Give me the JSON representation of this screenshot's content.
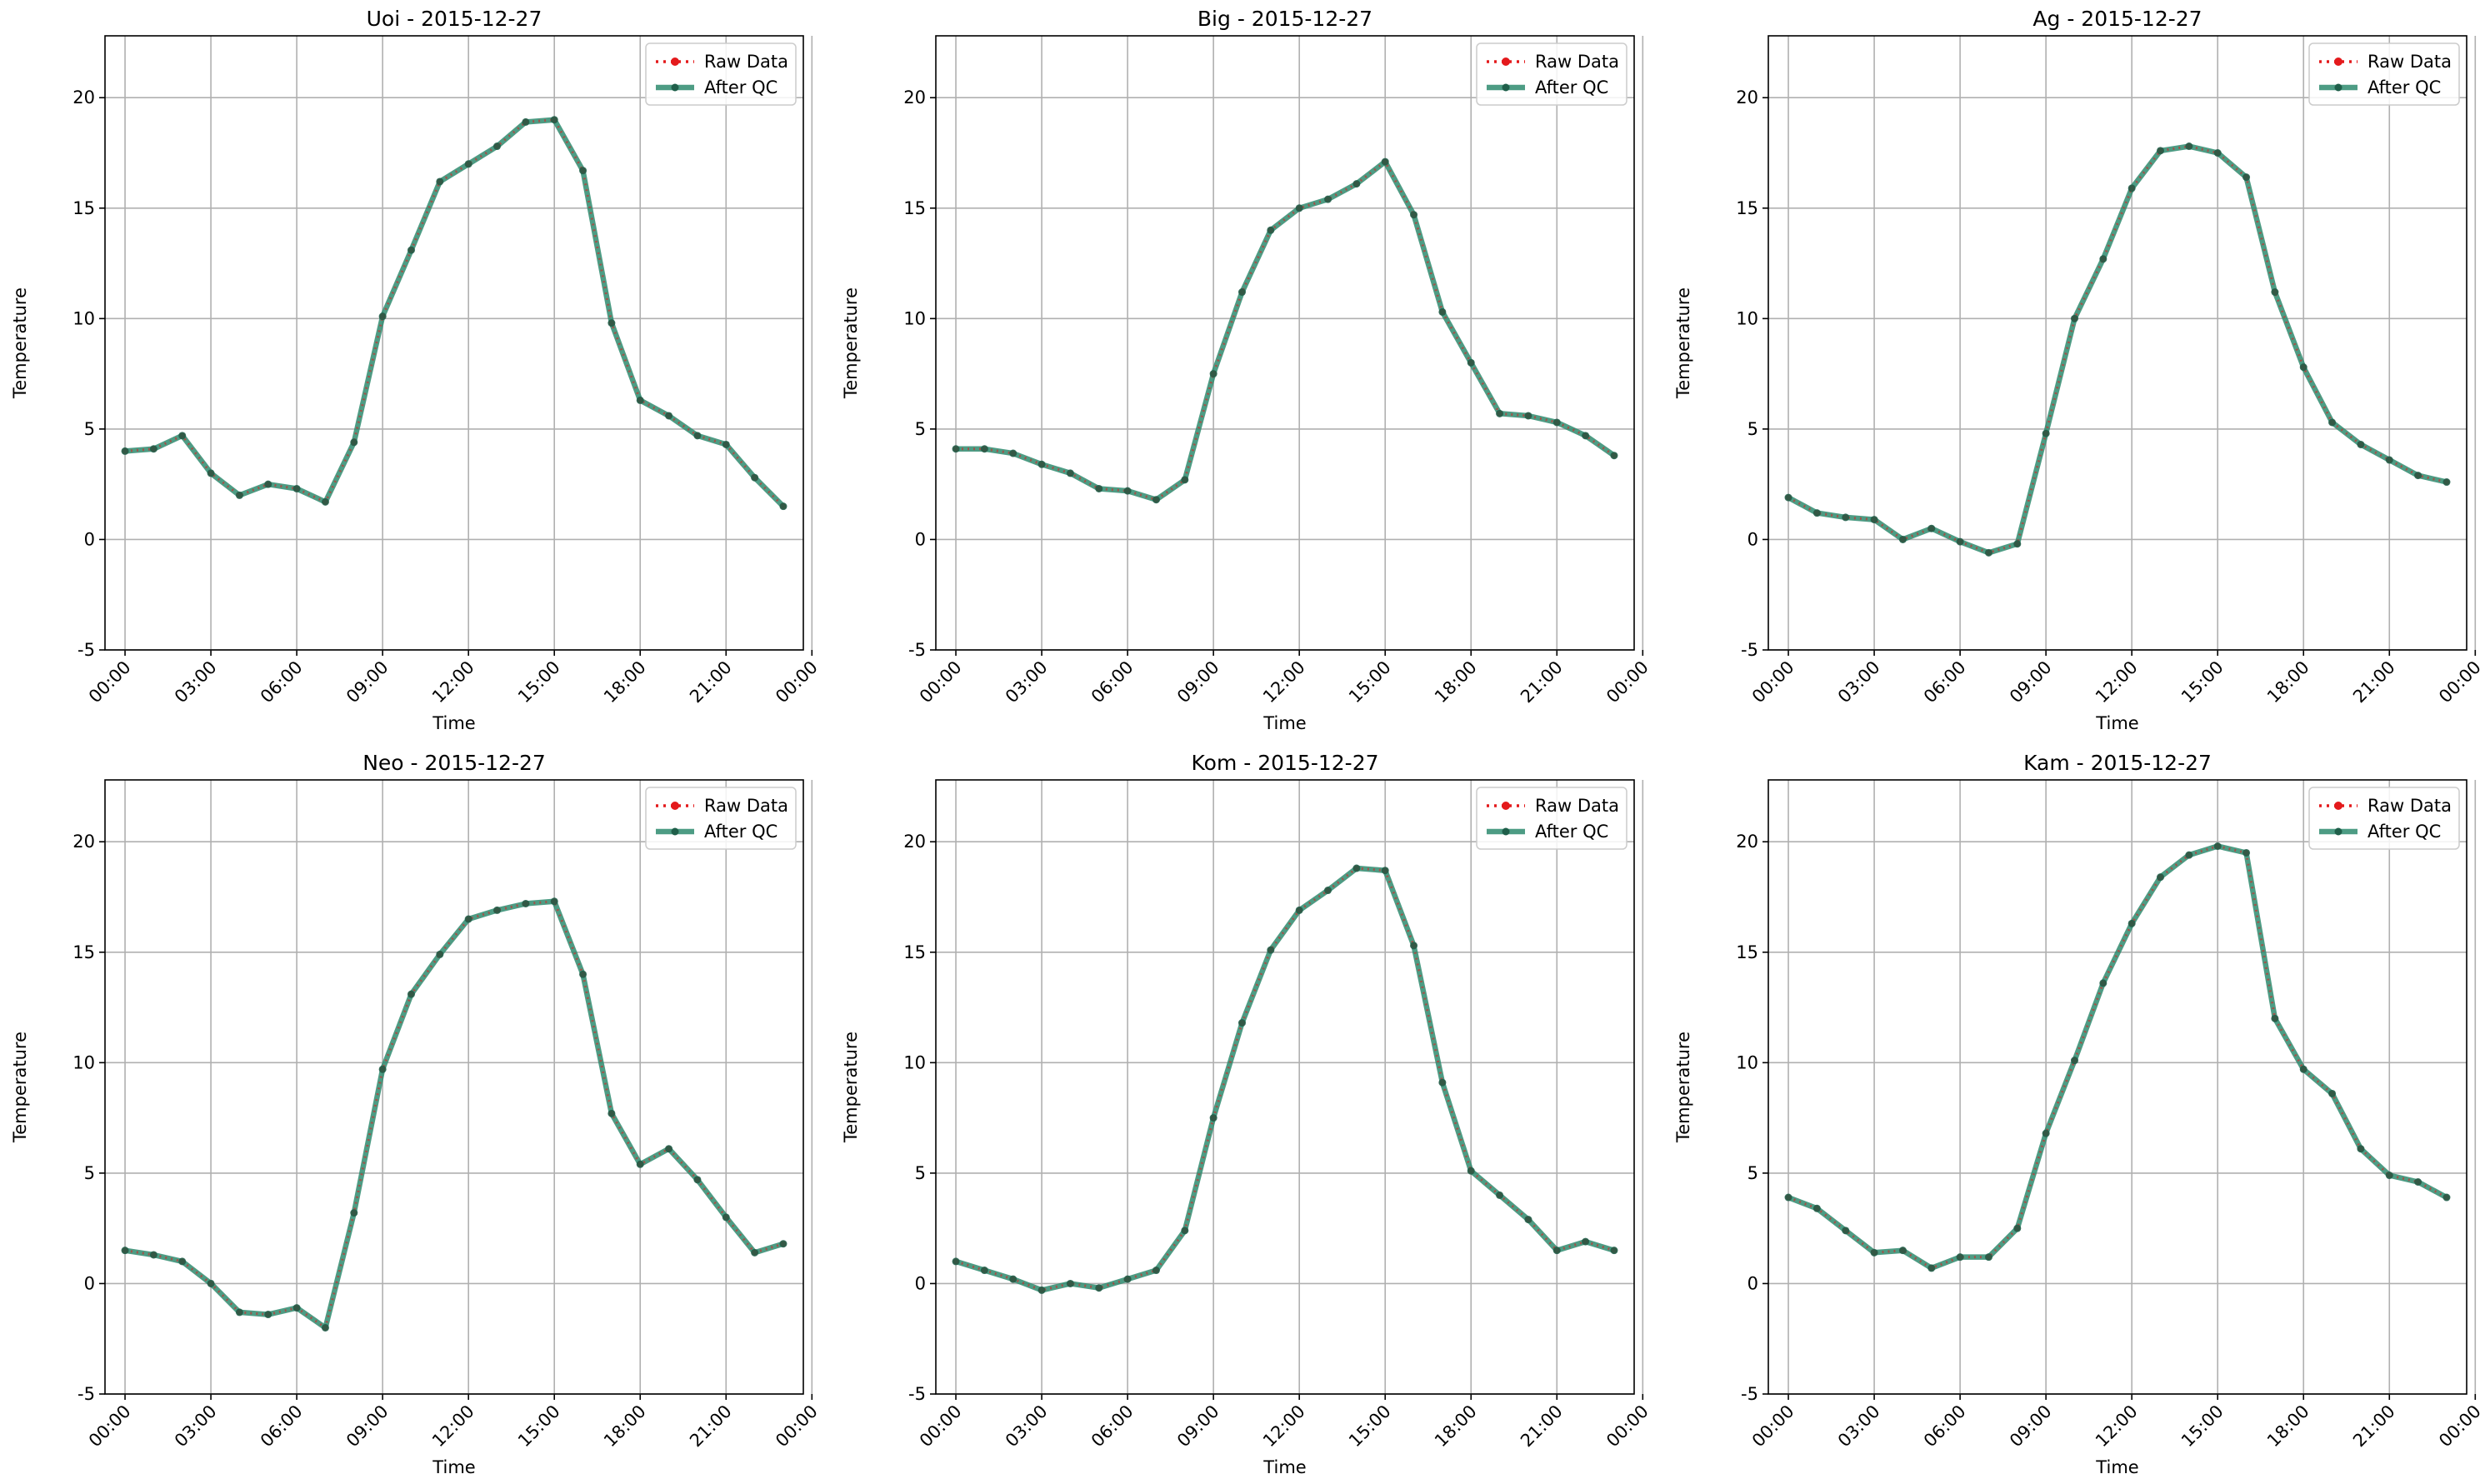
{
  "colors": {
    "raw": "#e41a1c",
    "qc": "#2e8b6e",
    "grid": "#b0b0b0"
  },
  "chart_data": [
    {
      "type": "line",
      "title": "Uoi - 2015-12-27",
      "xlabel": "Time",
      "ylabel": "Temperature",
      "ylim": [
        -5,
        22.8
      ],
      "yticks": [
        -5,
        0,
        5,
        10,
        15,
        20
      ],
      "xlim": [
        -0.7,
        23.7
      ],
      "xticks": [
        "00:00",
        "03:00",
        "06:00",
        "09:00",
        "12:00",
        "15:00",
        "18:00",
        "21:00",
        "00:00"
      ],
      "x": [
        0,
        1,
        2,
        3,
        4,
        5,
        6,
        7,
        8,
        9,
        10,
        11,
        12,
        13,
        14,
        15,
        16,
        17,
        18,
        19,
        20,
        21,
        22,
        23
      ],
      "series": [
        {
          "name": "Raw Data",
          "values": [
            4.0,
            4.1,
            4.7,
            3.0,
            2.0,
            2.5,
            2.3,
            1.7,
            4.4,
            10.1,
            13.1,
            16.2,
            17.0,
            17.8,
            18.9,
            19.0,
            16.7,
            9.8,
            6.3,
            5.6,
            4.7,
            4.3,
            2.8,
            1.5
          ]
        },
        {
          "name": "After QC",
          "values": [
            4.0,
            4.1,
            4.7,
            3.0,
            2.0,
            2.5,
            2.3,
            1.7,
            4.4,
            10.1,
            13.1,
            16.2,
            17.0,
            17.8,
            18.9,
            19.0,
            16.7,
            9.8,
            6.3,
            5.6,
            4.7,
            4.3,
            2.8,
            1.5
          ]
        }
      ],
      "legend": "top-right",
      "grid": true
    },
    {
      "type": "line",
      "title": "Big - 2015-12-27",
      "xlabel": "Time",
      "ylabel": "Temperature",
      "ylim": [
        -5,
        22.8
      ],
      "yticks": [
        -5,
        0,
        5,
        10,
        15,
        20
      ],
      "xlim": [
        -0.7,
        23.7
      ],
      "xticks": [
        "00:00",
        "03:00",
        "06:00",
        "09:00",
        "12:00",
        "15:00",
        "18:00",
        "21:00",
        "00:00"
      ],
      "x": [
        0,
        1,
        2,
        3,
        4,
        5,
        6,
        7,
        8,
        9,
        10,
        11,
        12,
        13,
        14,
        15,
        16,
        17,
        18,
        19,
        20,
        21,
        22,
        23
      ],
      "series": [
        {
          "name": "Raw Data",
          "values": [
            4.1,
            4.1,
            3.9,
            3.4,
            3.0,
            2.3,
            2.2,
            1.8,
            2.7,
            7.5,
            11.2,
            14.0,
            15.0,
            15.4,
            16.1,
            17.1,
            14.7,
            10.3,
            8.0,
            5.7,
            5.6,
            5.3,
            4.7,
            3.8
          ]
        },
        {
          "name": "After QC",
          "values": [
            4.1,
            4.1,
            3.9,
            3.4,
            3.0,
            2.3,
            2.2,
            1.8,
            2.7,
            7.5,
            11.2,
            14.0,
            15.0,
            15.4,
            16.1,
            17.1,
            14.7,
            10.3,
            8.0,
            5.7,
            5.6,
            5.3,
            4.7,
            3.8
          ]
        }
      ],
      "legend": "top-right",
      "grid": true
    },
    {
      "type": "line",
      "title": "Ag - 2015-12-27",
      "xlabel": "Time",
      "ylabel": "Temperature",
      "ylim": [
        -5,
        22.8
      ],
      "yticks": [
        -5,
        0,
        5,
        10,
        15,
        20
      ],
      "xlim": [
        -0.7,
        23.7
      ],
      "xticks": [
        "00:00",
        "03:00",
        "06:00",
        "09:00",
        "12:00",
        "15:00",
        "18:00",
        "21:00",
        "00:00"
      ],
      "x": [
        0,
        1,
        2,
        3,
        4,
        5,
        6,
        7,
        8,
        9,
        10,
        11,
        12,
        13,
        14,
        15,
        16,
        17,
        18,
        19,
        20,
        21,
        22,
        23
      ],
      "series": [
        {
          "name": "Raw Data",
          "values": [
            1.9,
            1.2,
            1.0,
            0.9,
            0.0,
            0.5,
            -0.1,
            -0.6,
            -0.2,
            4.8,
            10.0,
            12.7,
            15.9,
            17.6,
            17.8,
            17.5,
            16.4,
            11.2,
            7.8,
            5.3,
            4.3,
            3.6,
            2.9,
            2.6
          ]
        },
        {
          "name": "After QC",
          "values": [
            1.9,
            1.2,
            1.0,
            0.9,
            0.0,
            0.5,
            -0.1,
            -0.6,
            -0.2,
            4.8,
            10.0,
            12.7,
            15.9,
            17.6,
            17.8,
            17.5,
            16.4,
            11.2,
            7.8,
            5.3,
            4.3,
            3.6,
            2.9,
            2.6
          ]
        }
      ],
      "legend": "top-right",
      "grid": true
    },
    {
      "type": "line",
      "title": "Neo - 2015-12-27",
      "xlabel": "Time",
      "ylabel": "Temperature",
      "ylim": [
        -5,
        22.8
      ],
      "yticks": [
        -5,
        0,
        5,
        10,
        15,
        20
      ],
      "xlim": [
        -0.7,
        23.7
      ],
      "xticks": [
        "00:00",
        "03:00",
        "06:00",
        "09:00",
        "12:00",
        "15:00",
        "18:00",
        "21:00",
        "00:00"
      ],
      "x": [
        0,
        1,
        2,
        3,
        4,
        5,
        6,
        7,
        8,
        9,
        10,
        11,
        12,
        13,
        14,
        15,
        16,
        17,
        18,
        19,
        20,
        21,
        22,
        23
      ],
      "series": [
        {
          "name": "Raw Data",
          "values": [
            1.5,
            1.3,
            1.0,
            0.0,
            -1.3,
            -1.4,
            -1.1,
            -2.0,
            3.2,
            9.7,
            13.1,
            14.9,
            16.5,
            16.9,
            17.2,
            17.3,
            14.0,
            7.7,
            5.4,
            6.1,
            4.7,
            3.0,
            1.4,
            1.8
          ]
        },
        {
          "name": "After QC",
          "values": [
            1.5,
            1.3,
            1.0,
            0.0,
            -1.3,
            -1.4,
            -1.1,
            -2.0,
            3.2,
            9.7,
            13.1,
            14.9,
            16.5,
            16.9,
            17.2,
            17.3,
            14.0,
            7.7,
            5.4,
            6.1,
            4.7,
            3.0,
            1.4,
            1.8
          ]
        }
      ],
      "legend": "top-right",
      "grid": true
    },
    {
      "type": "line",
      "title": "Kom - 2015-12-27",
      "xlabel": "Time",
      "ylabel": "Temperature",
      "ylim": [
        -5,
        22.8
      ],
      "yticks": [
        -5,
        0,
        5,
        10,
        15,
        20
      ],
      "xlim": [
        -0.7,
        23.7
      ],
      "xticks": [
        "00:00",
        "03:00",
        "06:00",
        "09:00",
        "12:00",
        "15:00",
        "18:00",
        "21:00",
        "00:00"
      ],
      "x": [
        0,
        1,
        2,
        3,
        4,
        5,
        6,
        7,
        8,
        9,
        10,
        11,
        12,
        13,
        14,
        15,
        16,
        17,
        18,
        19,
        20,
        21,
        22,
        23
      ],
      "series": [
        {
          "name": "Raw Data",
          "values": [
            1.0,
            0.6,
            0.2,
            -0.3,
            0.0,
            -0.2,
            0.2,
            0.6,
            2.4,
            7.5,
            11.8,
            15.1,
            16.9,
            17.8,
            18.8,
            18.7,
            15.3,
            9.1,
            5.1,
            4.0,
            2.9,
            1.5,
            1.9,
            1.5
          ]
        },
        {
          "name": "After QC",
          "values": [
            1.0,
            0.6,
            0.2,
            -0.3,
            0.0,
            -0.2,
            0.2,
            0.6,
            2.4,
            7.5,
            11.8,
            15.1,
            16.9,
            17.8,
            18.8,
            18.7,
            15.3,
            9.1,
            5.1,
            4.0,
            2.9,
            1.5,
            1.9,
            1.5
          ]
        }
      ],
      "legend": "top-right",
      "grid": true
    },
    {
      "type": "line",
      "title": "Kam - 2015-12-27",
      "xlabel": "Time",
      "ylabel": "Temperature",
      "ylim": [
        -5,
        22.8
      ],
      "yticks": [
        -5,
        0,
        5,
        10,
        15,
        20
      ],
      "xlim": [
        -0.7,
        23.7
      ],
      "xticks": [
        "00:00",
        "03:00",
        "06:00",
        "09:00",
        "12:00",
        "15:00",
        "18:00",
        "21:00",
        "00:00"
      ],
      "x": [
        0,
        1,
        2,
        3,
        4,
        5,
        6,
        7,
        8,
        9,
        10,
        11,
        12,
        13,
        14,
        15,
        16,
        17,
        18,
        19,
        20,
        21,
        22,
        23
      ],
      "series": [
        {
          "name": "Raw Data",
          "values": [
            3.9,
            3.4,
            2.4,
            1.4,
            1.5,
            0.7,
            1.2,
            1.2,
            2.5,
            6.8,
            10.1,
            13.6,
            16.3,
            18.4,
            19.4,
            19.8,
            19.5,
            12.0,
            9.7,
            8.6,
            6.1,
            4.9,
            4.6,
            3.9
          ]
        },
        {
          "name": "After QC",
          "values": [
            3.9,
            3.4,
            2.4,
            1.4,
            1.5,
            0.7,
            1.2,
            1.2,
            2.5,
            6.8,
            10.1,
            13.6,
            16.3,
            18.4,
            19.4,
            19.8,
            19.5,
            12.0,
            9.7,
            8.6,
            6.1,
            4.9,
            4.6,
            3.9
          ]
        }
      ],
      "legend": "top-right",
      "grid": true
    }
  ]
}
